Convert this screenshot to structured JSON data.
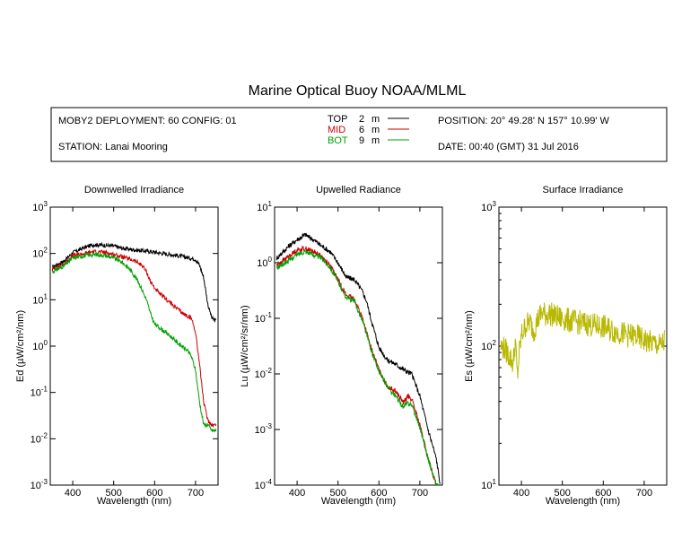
{
  "title": "Marine Optical Buoy NOAA/MLML",
  "info": {
    "deployment": "MOBY2 DEPLOYMENT: 60 CONFIG: 01",
    "station": "STATION: Lanai Mooring",
    "position": "POSITION: 20° 49.28' N   157° 10.99' W",
    "date": "DATE: 00:40 (GMT) 31 Jul 2016"
  },
  "legend": [
    {
      "name": "TOP",
      "depth": "2",
      "unit": "m",
      "color": "#000000"
    },
    {
      "name": "MID",
      "depth": "6",
      "unit": "m",
      "color": "#cc0000"
    },
    {
      "name": "BOT",
      "depth": "9",
      "unit": "m",
      "color": "#00a000"
    }
  ],
  "chart_data": [
    {
      "type": "line",
      "title": "Downwelled Irradiance",
      "xlabel": "Wavelength (nm)",
      "ylabel": "Ed  (µW/cm²/nm)",
      "xlim": [
        345,
        755
      ],
      "ylim_log10": [
        -3,
        3
      ],
      "yscale": "log",
      "xticks": [
        "400",
        "500",
        "600",
        "700"
      ],
      "yticks": [
        "10-3",
        "10-2",
        "10-1",
        "100",
        "101",
        "102",
        "103"
      ],
      "series": [
        {
          "name": "TOP",
          "color": "#000000",
          "x": [
            350,
            380,
            400,
            430,
            450,
            480,
            500,
            520,
            550,
            570,
            590,
            620,
            650,
            680,
            700,
            710,
            720,
            730,
            740,
            750
          ],
          "y": [
            50,
            70,
            105,
            135,
            155,
            150,
            145,
            130,
            120,
            115,
            110,
            100,
            92,
            82,
            75,
            55,
            30,
            8,
            4,
            3.5
          ]
        },
        {
          "name": "MID",
          "color": "#cc0000",
          "x": [
            350,
            380,
            400,
            430,
            450,
            480,
            500,
            520,
            550,
            570,
            580,
            590,
            600,
            610,
            630,
            650,
            670,
            690,
            700,
            710,
            720,
            730,
            740,
            750
          ],
          "y": [
            45,
            60,
            90,
            100,
            110,
            105,
            95,
            85,
            70,
            55,
            40,
            25,
            18,
            14,
            10,
            7,
            5,
            4,
            2,
            0.4,
            0.06,
            0.025,
            0.02,
            0.02
          ]
        },
        {
          "name": "BOT",
          "color": "#00a000",
          "x": [
            350,
            380,
            400,
            430,
            450,
            480,
            500,
            520,
            540,
            560,
            580,
            590,
            600,
            620,
            640,
            660,
            680,
            690,
            700,
            710,
            720,
            730,
            740,
            750
          ],
          "y": [
            40,
            55,
            80,
            90,
            95,
            90,
            80,
            65,
            45,
            25,
            10,
            5,
            3,
            2.2,
            1.6,
            1.1,
            0.8,
            0.6,
            0.3,
            0.06,
            0.02,
            0.02,
            0.015,
            0.015
          ]
        }
      ]
    },
    {
      "type": "line",
      "title": "Upwelled Radiance",
      "xlabel": "Wavelength (nm)",
      "ylabel": "Lu  (µW/cm²/sr/nm)",
      "xlim": [
        345,
        755
      ],
      "ylim_log10": [
        -4,
        1
      ],
      "yscale": "log",
      "xticks": [
        "400",
        "500",
        "600",
        "700"
      ],
      "yticks": [
        "10-4",
        "10-3",
        "10-2",
        "10-1",
        "100",
        "101"
      ],
      "series": [
        {
          "name": "TOP",
          "color": "#000000",
          "x": [
            350,
            380,
            400,
            420,
            440,
            460,
            480,
            500,
            520,
            540,
            560,
            570,
            580,
            600,
            620,
            640,
            660,
            680,
            700,
            720,
            740,
            750
          ],
          "y": [
            1.2,
            2.0,
            2.6,
            3.2,
            2.6,
            2.0,
            1.6,
            1.0,
            0.55,
            0.5,
            0.3,
            0.2,
            0.1,
            0.03,
            0.018,
            0.015,
            0.012,
            0.01,
            0.004,
            0.001,
            0.0003,
            0.0001
          ]
        },
        {
          "name": "MID",
          "color": "#cc0000",
          "x": [
            350,
            380,
            400,
            420,
            440,
            460,
            480,
            500,
            520,
            540,
            560,
            580,
            600,
            620,
            640,
            660,
            670,
            680,
            700,
            720,
            740
          ],
          "y": [
            0.9,
            1.3,
            1.7,
            1.8,
            1.6,
            1.3,
            0.9,
            0.5,
            0.26,
            0.22,
            0.1,
            0.03,
            0.012,
            0.006,
            0.005,
            0.003,
            0.004,
            0.0035,
            0.0012,
            0.0003,
            0.0001
          ]
        },
        {
          "name": "BOT",
          "color": "#00a000",
          "x": [
            350,
            380,
            400,
            420,
            440,
            460,
            480,
            500,
            520,
            540,
            560,
            580,
            600,
            620,
            640,
            660,
            670,
            680,
            700,
            720,
            740,
            750
          ],
          "y": [
            0.8,
            1.1,
            1.4,
            1.6,
            1.4,
            1.2,
            0.85,
            0.45,
            0.24,
            0.2,
            0.09,
            0.028,
            0.011,
            0.006,
            0.004,
            0.0025,
            0.003,
            0.0028,
            0.0011,
            0.0003,
            0.0001,
            0.0001
          ]
        }
      ]
    },
    {
      "type": "line",
      "title": "Surface Irradiance",
      "xlabel": "Wavelength (nm)",
      "ylabel": "Es  (µW/cm²/nm)",
      "xlim": [
        345,
        755
      ],
      "ylim_log10": [
        1,
        3
      ],
      "yscale": "log",
      "xticks": [
        "400",
        "500",
        "600",
        "700"
      ],
      "yticks": [
        "101",
        "102",
        "103"
      ],
      "series": [
        {
          "name": "Es",
          "color": "#b8b800",
          "x": [
            350,
            360,
            370,
            380,
            385,
            390,
            395,
            400,
            410,
            420,
            430,
            440,
            450,
            460,
            470,
            480,
            490,
            500,
            520,
            540,
            560,
            580,
            600,
            620,
            640,
            660,
            680,
            700,
            720,
            740,
            750
          ],
          "y": [
            100,
            95,
            85,
            75,
            110,
            60,
            90,
            120,
            140,
            150,
            130,
            155,
            175,
            168,
            172,
            165,
            160,
            158,
            152,
            148,
            145,
            140,
            138,
            130,
            125,
            120,
            118,
            110,
            105,
            100,
            110
          ]
        }
      ]
    }
  ]
}
